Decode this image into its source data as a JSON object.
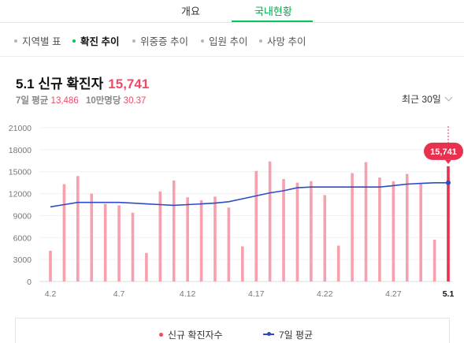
{
  "top_tabs": [
    {
      "label": "개요"
    },
    {
      "label": "국내현황"
    }
  ],
  "sub_tabs": [
    {
      "label": "지역별 표"
    },
    {
      "label": "확진 추이"
    },
    {
      "label": "위중증 추이"
    },
    {
      "label": "입원 추이"
    },
    {
      "label": "사망 추이"
    }
  ],
  "header": {
    "title": "5.1 신규 확진자",
    "value": "15,741",
    "avg_label": "7일 평균",
    "avg_value": "13,486",
    "per_label": "10만명당",
    "per_value": "30.37"
  },
  "range_select": {
    "label": "최근 30일"
  },
  "legend": {
    "confirmed_label": "신규 확진자수",
    "avg_label": "7일 평균"
  },
  "colors": {
    "accent_green": "#03c75a",
    "bar": "#f7a0ae",
    "bar_highlight": "#e8304f",
    "avg_line": "#2c4cc5",
    "value_red": "#f04a66"
  },
  "chart_data": {
    "type": "bar",
    "y_ticks": [
      "0",
      "3000",
      "6000",
      "9000",
      "12000",
      "15000",
      "18000",
      "21000"
    ],
    "ylim": [
      0,
      21000
    ],
    "x_tick_labels": [
      "4.2",
      "4.7",
      "4.12",
      "4.17",
      "4.22",
      "4.27",
      "5.1"
    ],
    "x_tick_indices": [
      0,
      5,
      10,
      15,
      20,
      25,
      29
    ],
    "highlight_label": "15,741",
    "series": [
      {
        "name": "신규 확진자수",
        "values": [
          4200,
          13300,
          14400,
          12000,
          10600,
          10400,
          9400,
          3900,
          12300,
          13800,
          11500,
          11100,
          11600,
          10100,
          4800,
          15100,
          16400,
          14000,
          13500,
          13700,
          11800,
          4900,
          14800,
          16300,
          14200,
          13700,
          14700,
          13400,
          5700,
          15741
        ]
      },
      {
        "name": "7일 평균",
        "values": [
          10200,
          10500,
          10800,
          10800,
          10800,
          10800,
          10700,
          10600,
          10500,
          10400,
          10500,
          10600,
          10700,
          10900,
          11300,
          11700,
          12100,
          12400,
          12800,
          12900,
          12900,
          12900,
          12900,
          12900,
          12900,
          13100,
          13300,
          13400,
          13486,
          13486
        ]
      }
    ]
  }
}
